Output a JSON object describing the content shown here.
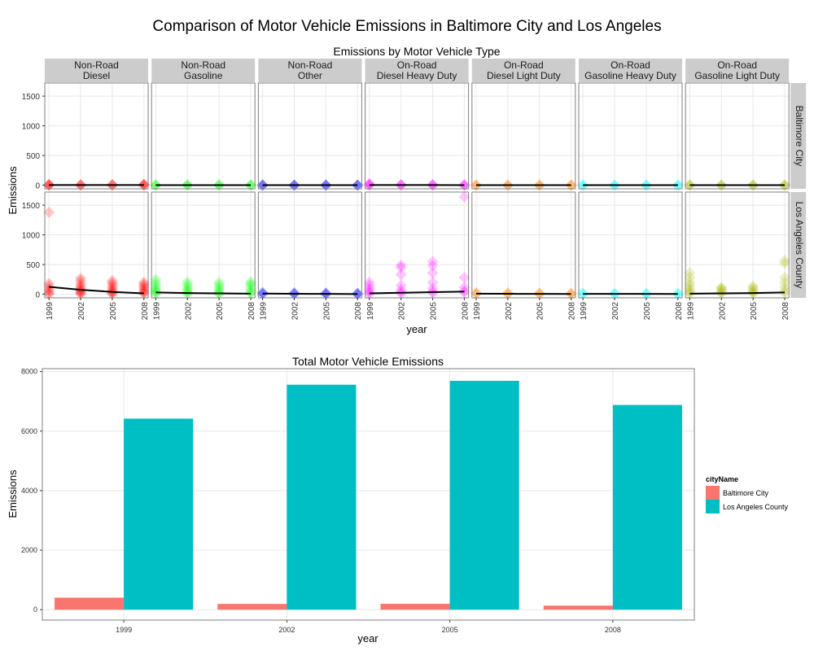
{
  "page_title": "Comparison of Motor Vehicle Emissions in Baltimore City and Los Angeles",
  "colors": {
    "strip_bg": "#cccccc",
    "grid": "#e8e8e8",
    "panel_border": "#7f7f7f",
    "trend_line": "#000000",
    "baltimore": "#F8766D",
    "los_angeles": "#00BFC4"
  },
  "chart_data": [
    {
      "type": "scatter",
      "title": "Emissions by Motor Vehicle Type",
      "xlabel": "year",
      "ylabel": "Emissions",
      "x_ticks": [
        "1999",
        "2002",
        "2005",
        "2008"
      ],
      "y_ticks": [
        "0",
        "500",
        "1000",
        "1500"
      ],
      "ylim": [
        -60,
        1720
      ],
      "grid": true,
      "facets_col": [
        {
          "line1": "Non-Road",
          "line2": "Diesel",
          "color": "#FF0000"
        },
        {
          "line1": "Non-Road",
          "line2": "Gasoline",
          "color": "#00FF00"
        },
        {
          "line1": "Non-Road",
          "line2": "Other",
          "color": "#0000FF"
        },
        {
          "line1": "On-Road",
          "line2": "Diesel Heavy Duty",
          "color": "#FF00FF"
        },
        {
          "line1": "On-Road",
          "line2": "Diesel Light Duty",
          "color": "#FF7F00"
        },
        {
          "line1": "On-Road",
          "line2": "Gasoline Heavy Duty",
          "color": "#00FFFF"
        },
        {
          "line1": "On-Road",
          "line2": "Gasoline Light Duty",
          "color": "#AAB400"
        }
      ],
      "facets_row": [
        "Baltimore City",
        "Los Angeles County"
      ],
      "points": [
        [
          [
            [
              0,
              3,
              8,
              12
            ],
            [
              0,
              4,
              9
            ],
            [
              0,
              5,
              10
            ],
            [
              0,
              6,
              11,
              15
            ]
          ],
          [
            [
              0,
              2,
              5
            ],
            [
              0,
              3,
              6
            ],
            [
              0,
              3,
              7
            ],
            [
              0,
              4,
              8
            ]
          ],
          [
            [
              0,
              1,
              3
            ],
            [
              0,
              1,
              2
            ],
            [
              0,
              1,
              2
            ],
            [
              0,
              1,
              2
            ]
          ],
          [
            [
              0,
              6,
              15,
              28
            ],
            [
              0,
              5,
              12
            ],
            [
              0,
              5,
              10
            ],
            [
              0,
              4,
              9
            ]
          ],
          [
            [
              0,
              1,
              2
            ],
            [
              0,
              1,
              2
            ],
            [
              0,
              1,
              2
            ],
            [
              0,
              1,
              2
            ]
          ],
          [
            [
              0,
              1,
              2
            ],
            [
              0,
              1,
              2
            ],
            [
              0,
              1,
              2
            ],
            [
              0,
              1,
              2
            ]
          ],
          [
            [
              0,
              2,
              5
            ],
            [
              0,
              2,
              4
            ],
            [
              0,
              2,
              4
            ],
            [
              0,
              2,
              4
            ]
          ]
        ],
        [
          [
            [
              1380,
              180,
              140,
              90,
              60,
              20,
              5
            ],
            [
              270,
              230,
              180,
              140,
              110,
              80,
              60,
              40,
              20,
              5
            ],
            [
              230,
              190,
              160,
              120,
              90,
              60,
              40,
              20,
              5
            ],
            [
              200,
              170,
              140,
              110,
              80,
              50,
              30,
              10
            ]
          ],
          [
            [
              250,
              200,
              160,
              110,
              80,
              50,
              30,
              10
            ],
            [
              210,
              170,
              130,
              90,
              60,
              30,
              10
            ],
            [
              200,
              160,
              120,
              80,
              50,
              20,
              5
            ],
            [
              210,
              180,
              150,
              100,
              60,
              30,
              10
            ]
          ],
          [
            [
              30,
              15,
              5
            ],
            [
              25,
              10,
              5
            ],
            [
              20,
              10,
              5
            ],
            [
              15,
              8,
              3
            ]
          ],
          [
            [
              200,
              150,
              100,
              60,
              30,
              10
            ],
            [
              490,
              450,
              330,
              150,
              80,
              40,
              10
            ],
            [
              550,
              480,
              360,
              200,
              100,
              50,
              20
            ],
            [
              1640,
              280,
              120,
              60,
              30
            ]
          ],
          [
            [
              30,
              15,
              5
            ],
            [
              25,
              12,
              5
            ],
            [
              20,
              10,
              5
            ],
            [
              15,
              8,
              3
            ]
          ],
          [
            [
              20,
              10,
              5
            ],
            [
              18,
              8,
              4
            ],
            [
              16,
              7,
              3
            ],
            [
              15,
              6,
              3
            ]
          ],
          [
            [
              360,
              280,
              200,
              150,
              100,
              60,
              30,
              10
            ],
            [
              120,
              100,
              80,
              50,
              30,
              10
            ],
            [
              140,
              110,
              80,
              50,
              30,
              10
            ],
            [
              570,
              520,
              280,
              200,
              120,
              60,
              20
            ]
          ]
        ]
      ],
      "trend": [
        [
          [
            3,
            3,
            3,
            3
          ],
          [
            2,
            2,
            2,
            2
          ],
          [
            1,
            1,
            1,
            1
          ],
          [
            4,
            3,
            3,
            2
          ],
          [
            1,
            1,
            1,
            1
          ],
          [
            1,
            1,
            1,
            1
          ],
          [
            2,
            2,
            2,
            2
          ]
        ],
        [
          [
            125,
            75,
            40,
            15
          ],
          [
            30,
            20,
            15,
            10
          ],
          [
            12,
            8,
            6,
            4
          ],
          [
            15,
            25,
            35,
            45
          ],
          [
            10,
            8,
            6,
            5
          ],
          [
            7,
            6,
            6,
            5
          ],
          [
            10,
            15,
            20,
            30
          ]
        ]
      ]
    },
    {
      "type": "bar",
      "title": "Total Motor Vehicle Emissions",
      "xlabel": "year",
      "ylabel": "Emissions",
      "categories": [
        "1999",
        "2002",
        "2005",
        "2008"
      ],
      "y_ticks": [
        "0",
        "2000",
        "4000",
        "6000",
        "8000"
      ],
      "ylim": [
        -350,
        8100
      ],
      "grid": true,
      "legend_title": "cityName",
      "legend_position": "right",
      "series": [
        {
          "name": "Baltimore City",
          "color": "#F8766D",
          "values": [
            403,
            193,
            196,
            136
          ]
        },
        {
          "name": "Los Angeles County",
          "color": "#00BFC4",
          "values": [
            6420,
            7560,
            7690,
            6880
          ]
        }
      ]
    }
  ]
}
